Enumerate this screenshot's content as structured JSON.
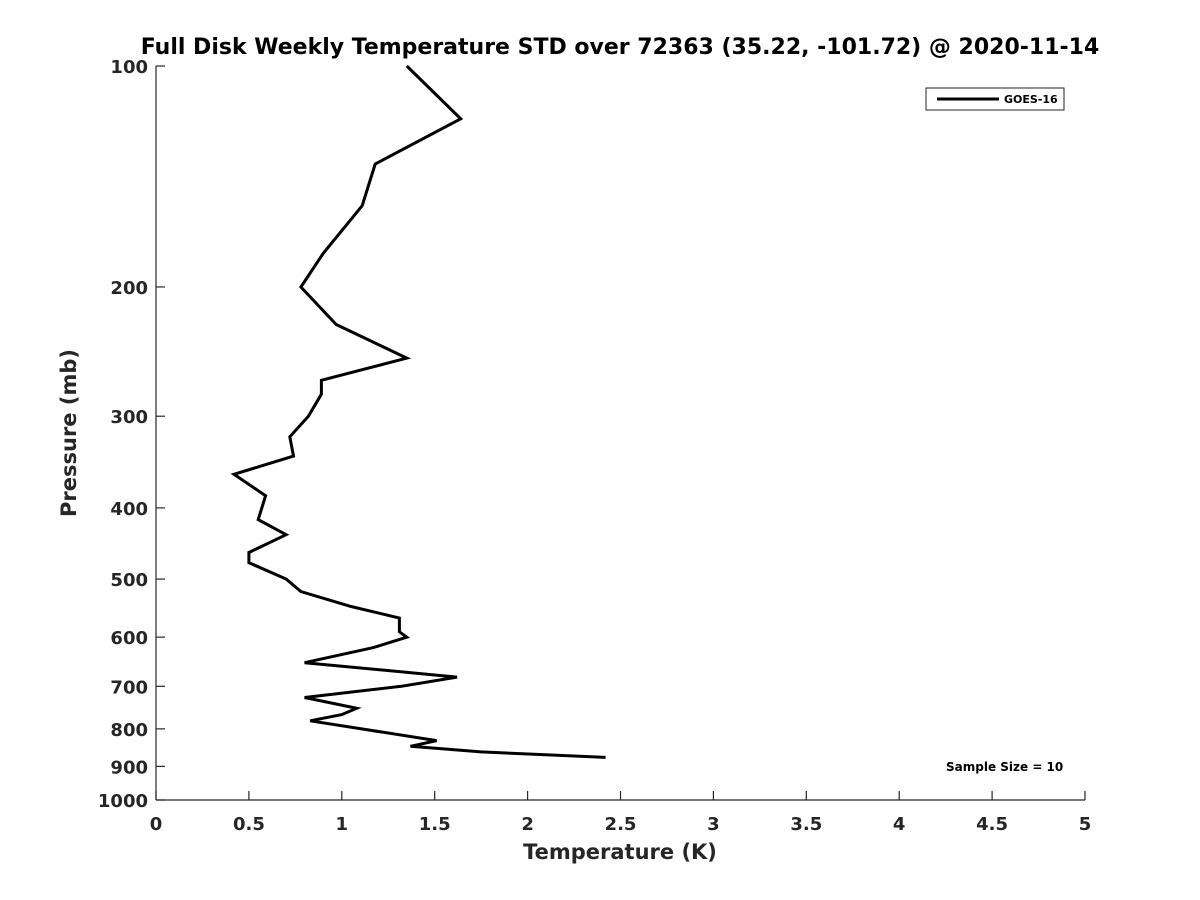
{
  "chart_data": {
    "type": "line",
    "title": "Full Disk Weekly Temperature STD over 72363 (35.22, -101.72) @ 2020-11-14",
    "xlabel": "Temperature (K)",
    "ylabel": "Pressure (mb)",
    "xlim": [
      0,
      5
    ],
    "ylim": [
      100,
      1000
    ],
    "y_scale": "log",
    "y_reversed": true,
    "xticks": [
      "0",
      "0.5",
      "1",
      "1.5",
      "2",
      "2.5",
      "3",
      "3.5",
      "4",
      "4.5",
      "5"
    ],
    "yticks": [
      "100",
      "200",
      "300",
      "400",
      "500",
      "600",
      "700",
      "800",
      "900",
      "1000"
    ],
    "grid": false,
    "legend": {
      "position": "top-right",
      "entries": [
        "GOES-16"
      ]
    },
    "annotation": "Sample Size = 10",
    "series": [
      {
        "name": "GOES-16",
        "color": "#000000",
        "points": [
          [
            1.35,
            100
          ],
          [
            1.64,
            118
          ],
          [
            1.18,
            136
          ],
          [
            1.11,
            155
          ],
          [
            0.9,
            180
          ],
          [
            0.78,
            200
          ],
          [
            0.97,
            225
          ],
          [
            1.35,
            250
          ],
          [
            0.89,
            268
          ],
          [
            0.89,
            280
          ],
          [
            0.82,
            300
          ],
          [
            0.72,
            320
          ],
          [
            0.74,
            340
          ],
          [
            0.42,
            360
          ],
          [
            0.59,
            385
          ],
          [
            0.55,
            415
          ],
          [
            0.7,
            435
          ],
          [
            0.5,
            460
          ],
          [
            0.5,
            475
          ],
          [
            0.7,
            500
          ],
          [
            0.78,
            520
          ],
          [
            1.05,
            545
          ],
          [
            1.31,
            565
          ],
          [
            1.31,
            590
          ],
          [
            1.35,
            600
          ],
          [
            1.17,
            620
          ],
          [
            0.8,
            650
          ],
          [
            1.62,
            680
          ],
          [
            1.32,
            700
          ],
          [
            0.8,
            725
          ],
          [
            1.08,
            750
          ],
          [
            1.0,
            765
          ],
          [
            0.83,
            780
          ],
          [
            1.51,
            830
          ],
          [
            1.37,
            845
          ],
          [
            1.75,
            860
          ],
          [
            2.42,
            875
          ]
        ]
      }
    ]
  }
}
